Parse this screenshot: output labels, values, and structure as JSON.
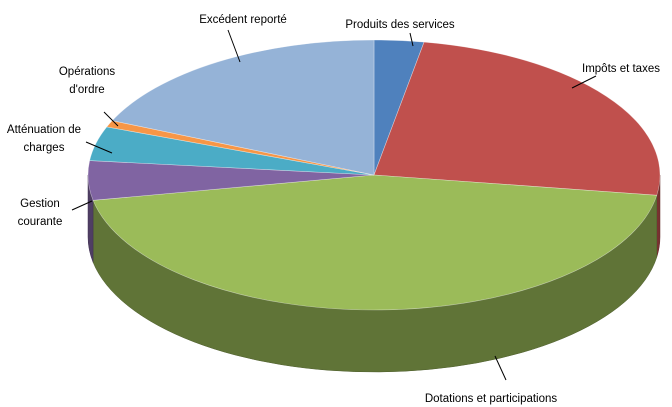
{
  "chart_data": {
    "type": "pie3d",
    "categories": [
      "Produits des services",
      "Impôts et taxes",
      "Dotations  et participations",
      "Gestion courante",
      "Atténuation de charges",
      "Opérations d'ordre",
      "Excédent reporté"
    ],
    "values": [
      2.8,
      24.6,
      44.6,
      4.7,
      4.1,
      0.8,
      18.4
    ],
    "colors": [
      "#4f81bd",
      "#c0504d",
      "#9bbb59",
      "#8064a2",
      "#4bacc6",
      "#f79646",
      "#95b3d7"
    ]
  }
}
